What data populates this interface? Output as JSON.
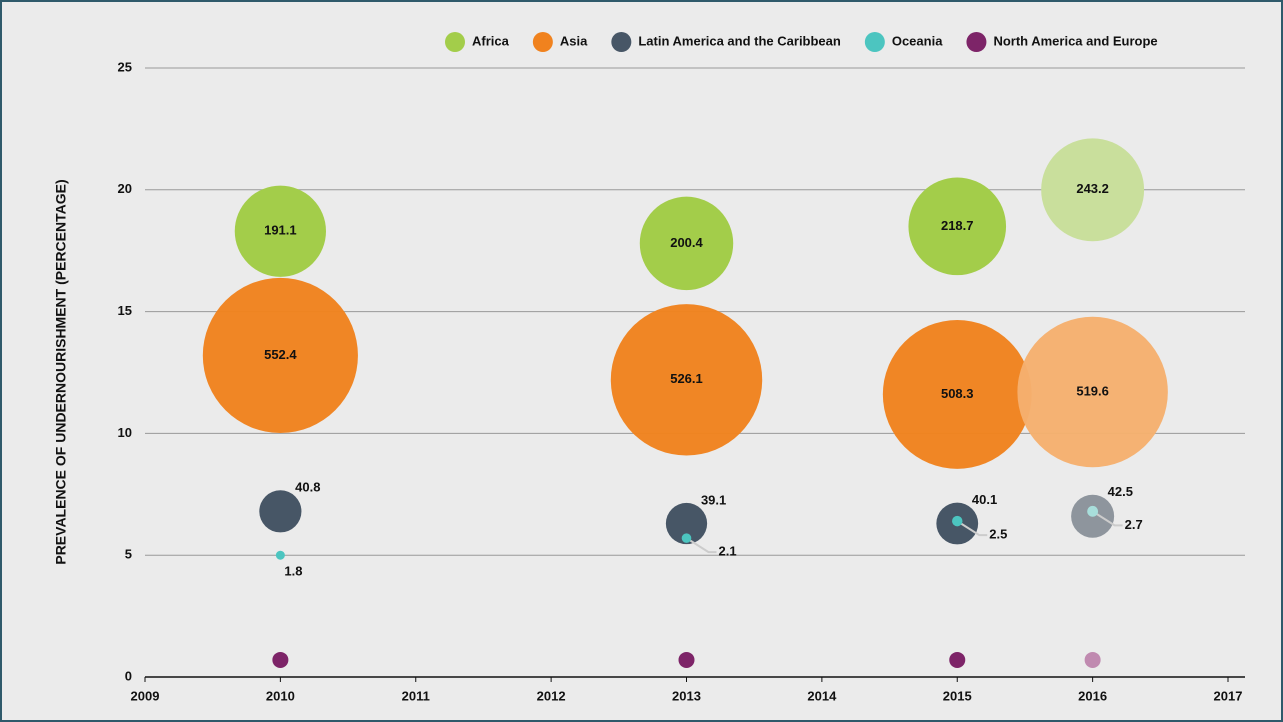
{
  "chart_data": {
    "type": "bubble",
    "y_label": "PREVALENCE OF UNDERNOURISHMENT (PERCENTAGE)",
    "xlim": [
      2009,
      2017
    ],
    "xticks": [
      2009,
      2010,
      2011,
      2012,
      2013,
      2014,
      2015,
      2016,
      2017
    ],
    "ylim": [
      0,
      25
    ],
    "yticks": [
      0,
      5,
      10,
      15,
      20,
      25
    ],
    "grid": true,
    "legend": "top",
    "series": [
      {
        "name": "Africa",
        "color": "#a3cd4a",
        "colors": [
          "#a3cd4a",
          "#a3cd4a",
          "#a3cd4a",
          "#c9df9c"
        ],
        "x": [
          2010,
          2013,
          2015,
          2016
        ],
        "values": [
          18.3,
          17.8,
          18.5,
          20.0
        ],
        "sizes": [
          191.1,
          200.4,
          218.7,
          243.2
        ]
      },
      {
        "name": "Asia",
        "color": "#f0821e",
        "colors": [
          "#f0821e",
          "#f0821e",
          "#f0821e",
          "#f5b06e"
        ],
        "x": [
          2010,
          2013,
          2015,
          2016
        ],
        "values": [
          13.2,
          12.2,
          11.6,
          11.7
        ],
        "sizes": [
          552.4,
          526.1,
          508.3,
          519.6
        ]
      },
      {
        "name": "Latin America and the Caribbean",
        "color": "#475666",
        "colors": [
          "#475666",
          "#475666",
          "#475666",
          "#8e959d"
        ],
        "x": [
          2010,
          2013,
          2015,
          2016
        ],
        "values": [
          6.8,
          6.3,
          6.3,
          6.6
        ],
        "sizes": [
          40.8,
          39.1,
          40.1,
          42.5
        ]
      },
      {
        "name": "Oceania",
        "color": "#4cc5c0",
        "colors": [
          "#4cc5c0",
          "#4cc5c0",
          "#4cc5c0",
          "#a8dedb"
        ],
        "x": [
          2010,
          2013,
          2015,
          2016
        ],
        "values": [
          5.0,
          5.7,
          6.4,
          6.8
        ],
        "sizes": [
          1.8,
          2.1,
          2.5,
          2.7
        ]
      },
      {
        "name": "North America and Europe",
        "color": "#7d2468",
        "colors": [
          "#7d2468",
          "#7d2468",
          "#7d2468",
          "#c08ab0"
        ],
        "x": [
          2010,
          2013,
          2015,
          2016
        ],
        "values": [
          0.7,
          0.7,
          0.7,
          0.7
        ]
      }
    ]
  }
}
